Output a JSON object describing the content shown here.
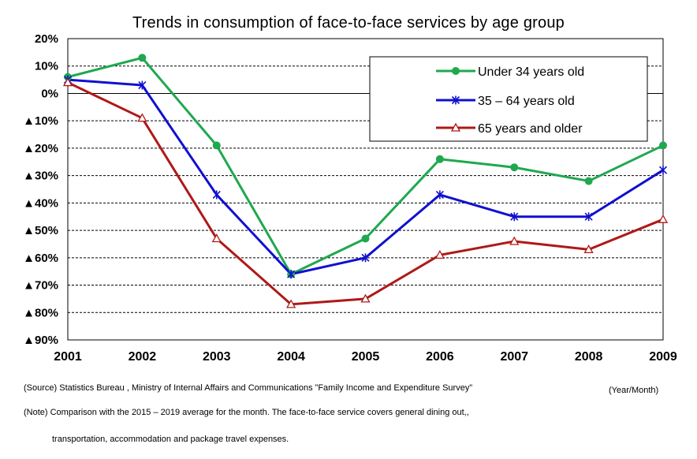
{
  "chart_data": {
    "type": "line",
    "title": "Trends in consumption of face-to-face services by age group",
    "xlabel": "",
    "ylabel": "",
    "x": [
      "2001",
      "2002",
      "2003",
      "2004",
      "2005",
      "2006",
      "2007",
      "2008",
      "2009"
    ],
    "ylim": [
      -90,
      20
    ],
    "y_ticks": [
      20,
      10,
      0,
      -10,
      -20,
      -30,
      -40,
      -50,
      -60,
      -70,
      -80,
      -90
    ],
    "y_tick_labels": [
      "20%",
      "10%",
      "0%",
      "▲10%",
      "▲20%",
      "▲30%",
      "▲40%",
      "▲50%",
      "▲60%",
      "▲70%",
      "▲80%",
      "▲90%"
    ],
    "grid": "horizontal dashed",
    "legend_position": "top-right",
    "series": [
      {
        "name": "Under 34 years old",
        "color": "#1fa84f",
        "marker": "circle",
        "values": [
          6,
          13,
          -19,
          -66,
          -53,
          -24,
          -27,
          -32,
          -19
        ]
      },
      {
        "name": "35 – 64 years old",
        "color": "#1010d0",
        "marker": "x-star",
        "values": [
          5,
          3,
          -37,
          -66,
          -60,
          -37,
          -45,
          -45,
          -28
        ]
      },
      {
        "name": "65 years and older",
        "color": "#b01818",
        "marker": "triangle",
        "values": [
          4,
          -9,
          -53,
          -77,
          -75,
          -59,
          -54,
          -57,
          -46
        ]
      }
    ]
  },
  "notes": {
    "unit": "(Year/Month)",
    "source": "(Source) Statistics Bureau , Ministry of Internal Affairs and Communications ”Family Income and Expenditure Survey”",
    "note_line1": "(Note) Comparison with the 2015 – 2019 average for the month. The face-to-face service covers general dining out,,",
    "note_line2": "transportation, accommodation and package travel expenses."
  }
}
